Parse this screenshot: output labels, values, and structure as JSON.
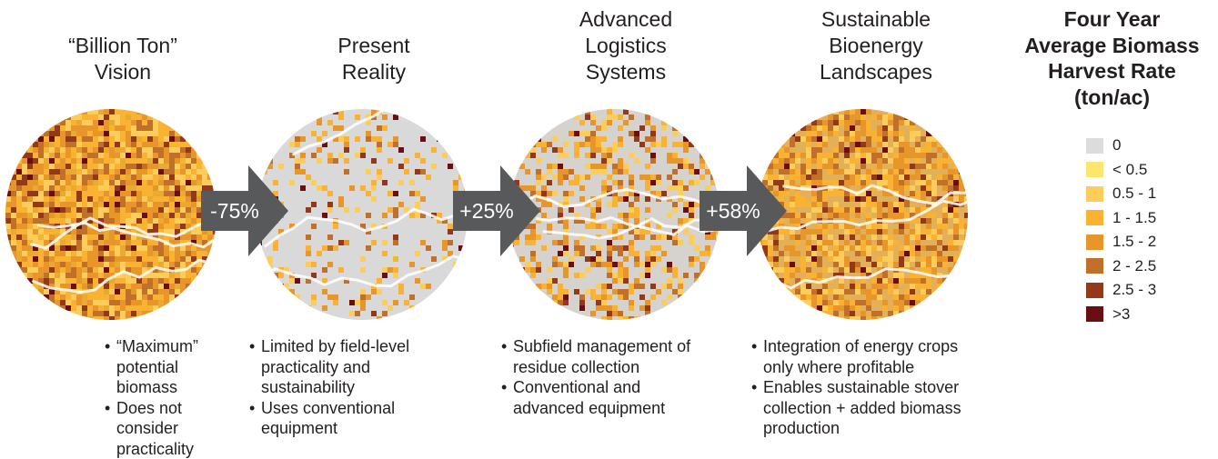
{
  "panels": [
    {
      "title": "“Billion Ton”\nVision",
      "bullets": [
        "“Maximum” potential biomass",
        "Does not consider practicality"
      ],
      "map_base": "#e9aa31",
      "map_density": 0.92
    },
    {
      "title": "Present\nReality",
      "bullets": [
        "Limited by field-level practicality and sustainability",
        "Uses conventional equipment"
      ],
      "map_base": "#d9d9d9",
      "map_density": 0.22
    },
    {
      "title": "Advanced\nLogistics\nSystems",
      "bullets": [
        "Subfield management of residue collection",
        "Conventional and advanced equipment"
      ],
      "map_base": "#d6d3cf",
      "map_density": 0.42
    },
    {
      "title": "Sustainable\nBioenergy\nLandscapes",
      "bullets": [
        "Integration of energy crops only where profitable",
        "Enables sustainable stover collection + added biomass production"
      ],
      "map_base": "#e3b05a",
      "map_density": 0.72
    }
  ],
  "arrows": [
    {
      "label": "-75%"
    },
    {
      "label": "+25%"
    },
    {
      "label": "+58%"
    }
  ],
  "arrow_color": "#58595b",
  "legend": {
    "title": "Four Year\nAverage Biomass\nHarvest Rate\n(ton/ac)",
    "items": [
      {
        "label": "0",
        "color": "#dcdcdc"
      },
      {
        "label": "< 0.5",
        "color": "#fde66f"
      },
      {
        "label": "0.5 - 1",
        "color": "#fdcd5b"
      },
      {
        "label": "1 - 1.5",
        "color": "#f9b232"
      },
      {
        "label": "1.5 - 2",
        "color": "#e8952a"
      },
      {
        "label": "2 - 2.5",
        "color": "#c0702b"
      },
      {
        "label": "2.5 - 3",
        "color": "#92391c"
      },
      {
        "label": ">3",
        "color": "#6a0e13"
      }
    ]
  }
}
